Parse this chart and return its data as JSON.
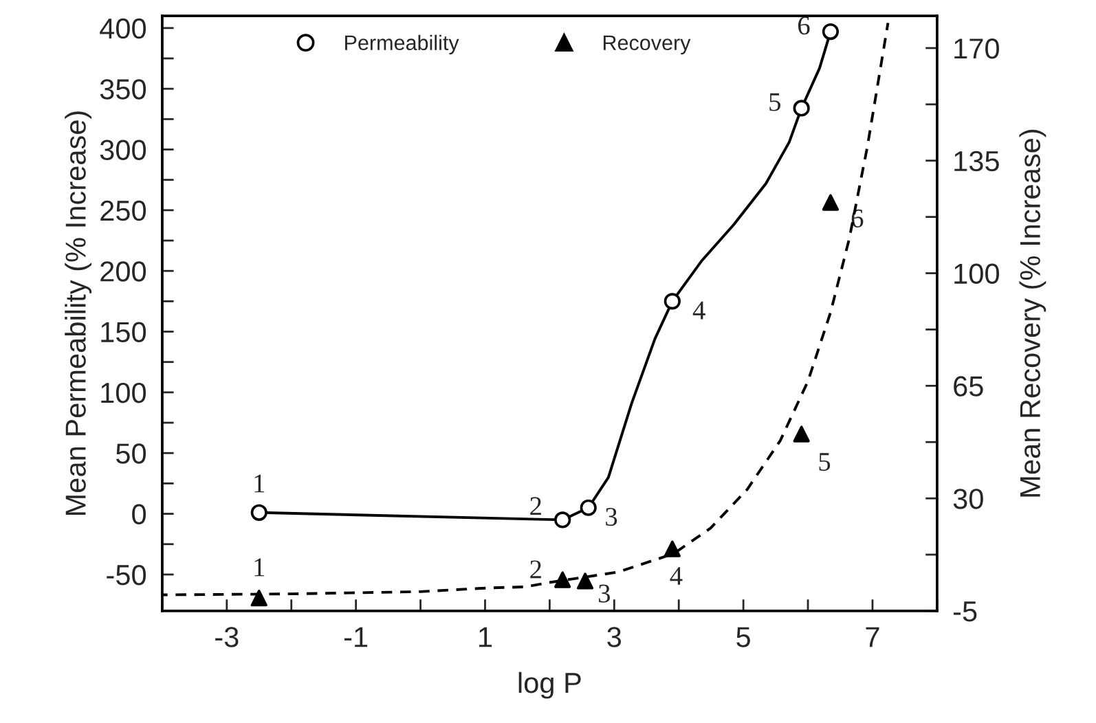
{
  "chart_data": {
    "type": "scatter",
    "xlabel": "log P",
    "ylabel": "Mean Permeability (% Increase)",
    "y2label": "Mean Recovery (% Increase)",
    "xlim": [
      -4,
      8
    ],
    "xticks": [
      {
        "value": -4,
        "label": null
      },
      -3,
      {
        "value": -2,
        "label": null
      },
      -1,
      {
        "value": 0,
        "label": null
      },
      1,
      {
        "value": 2,
        "label": null
      },
      3,
      {
        "value": 4,
        "label": null
      },
      5,
      {
        "value": 6,
        "label": null
      },
      7,
      {
        "value": 8,
        "label": null
      }
    ],
    "ylim": [
      -80,
      410
    ],
    "yticks": [
      -50,
      {
        "value": -25,
        "label": null
      },
      0,
      {
        "value": 25,
        "label": null
      },
      50,
      {
        "value": 75,
        "label": null
      },
      100,
      {
        "value": 125,
        "label": null
      },
      150,
      {
        "value": 175,
        "label": null
      },
      200,
      {
        "value": 225,
        "label": null
      },
      250,
      {
        "value": 275,
        "label": null
      },
      300,
      {
        "value": 325,
        "label": null
      },
      350,
      {
        "value": 375,
        "label": null
      },
      400
    ],
    "y2lim": [
      -5,
      180
    ],
    "y2ticks": [
      -5,
      {
        "value": 12.5,
        "label": null
      },
      30,
      {
        "value": 47.5,
        "label": null
      },
      65,
      {
        "value": 82.5,
        "label": null
      },
      100,
      {
        "value": 117.5,
        "label": null
      },
      135,
      {
        "value": 152.5,
        "label": null
      },
      170
    ],
    "legend": "top",
    "grid": false,
    "series": [
      {
        "type": "line",
        "color": "#000000",
        "line_style": "solid",
        "marker": "none",
        "x": [
          -2.5,
          2.2,
          2.6,
          2.91,
          3.27,
          3.63,
          3.9,
          4.35,
          4.85,
          5.35,
          5.71,
          5.9,
          6.18,
          6.35
        ],
        "values": [
          1,
          -5,
          5,
          30,
          91,
          144,
          175,
          208,
          238,
          272,
          306,
          334,
          367,
          397
        ]
      },
      {
        "type": "line",
        "axis": "y2",
        "color": "#000000",
        "line_style": "dashed",
        "marker": "none",
        "x": [
          -4,
          -2,
          0,
          1,
          1.62,
          1.98,
          3.06,
          3.92,
          4.49,
          5.06,
          5.57,
          6.0,
          6.35,
          6.64,
          6.92,
          7.24
        ],
        "values": [
          0,
          0.3,
          1.0,
          2.1,
          2.5,
          3.8,
          7.1,
          12.8,
          20.7,
          32.8,
          47.9,
          66.4,
          87.8,
          110.7,
          139.3,
          177.8
        ]
      },
      {
        "name": "Permeability",
        "color": "#000000",
        "marker": "circle",
        "x": [
          -2.5,
          2.2,
          2.6,
          3.9,
          5.9,
          6.35
        ],
        "values": [
          1,
          -5,
          5,
          175,
          334,
          397
        ]
      },
      {
        "name": "Recovery",
        "axis": "y2",
        "color": "#000000",
        "marker": "triangle",
        "x": [
          -2.5,
          2.2,
          2.55,
          3.9,
          5.9,
          6.35
        ],
        "values": [
          -1,
          4.7,
          4.3,
          14.3,
          50,
          122
        ]
      }
    ],
    "annotations": [
      {
        "text": "1",
        "x": -2.5,
        "y": 1
      },
      {
        "text": "2",
        "x": 2.2,
        "y": -5
      },
      {
        "text": "3",
        "x": 2.6,
        "y": 5
      },
      {
        "text": "4",
        "x": 3.9,
        "y": 175
      },
      {
        "text": "5",
        "x": 5.9,
        "y": 334
      },
      {
        "text": "6",
        "x": 6.35,
        "y": 397
      },
      {
        "text": "1",
        "x": -2.5,
        "y": -68
      },
      {
        "text": "2",
        "x": 2.2,
        "y": -54
      },
      {
        "text": "3",
        "x": 2.55,
        "y": -55
      },
      {
        "text": "4",
        "x": 3.9,
        "y": -28
      },
      {
        "text": "5",
        "x": 5.9,
        "y": 66
      },
      {
        "text": "6",
        "x": 6.35,
        "y": 257
      }
    ]
  }
}
